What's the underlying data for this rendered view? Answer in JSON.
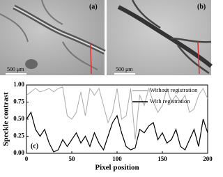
{
  "panels": [
    {
      "label": "(a)",
      "scale_bar": "500 μm"
    },
    {
      "label": "(b)",
      "scale_bar": "500 μm"
    }
  ],
  "chart_data": {
    "type": "line",
    "annotation": "(c)",
    "xlabel": "Pixel position",
    "ylabel": "Speckle contrast",
    "x": [
      0,
      5,
      10,
      15,
      20,
      25,
      30,
      35,
      40,
      45,
      50,
      55,
      60,
      65,
      70,
      75,
      80,
      85,
      90,
      95,
      100,
      105,
      110,
      115,
      120,
      125,
      130,
      135,
      140,
      145,
      150,
      155,
      160,
      165,
      170,
      175,
      180,
      185,
      190,
      195,
      200
    ],
    "series": [
      {
        "name": "Without registration",
        "color": "#aaaaaa",
        "values": [
          0.85,
          0.9,
          0.95,
          0.9,
          0.92,
          0.95,
          0.9,
          0.95,
          0.97,
          0.55,
          0.5,
          0.6,
          0.9,
          0.55,
          0.95,
          0.85,
          0.95,
          0.7,
          0.45,
          0.6,
          0.95,
          0.5,
          0.55,
          0.95,
          0.2,
          0.85,
          0.7,
          0.95,
          0.75,
          0.6,
          0.7,
          0.95,
          0.75,
          0.85,
          0.75,
          0.85,
          0.6,
          0.65,
          0.85,
          0.95,
          0.8
        ]
      },
      {
        "name": "With registration",
        "color": "#000000",
        "values": [
          0.5,
          0.6,
          0.35,
          0.25,
          0.35,
          0.15,
          0.02,
          0.05,
          0.2,
          0.1,
          0.2,
          0.3,
          0.15,
          0.25,
          0.1,
          0.3,
          0.15,
          0.05,
          0.25,
          0.45,
          0.55,
          0.3,
          0.1,
          0.05,
          0.08,
          0.35,
          0.3,
          0.4,
          0.45,
          0.2,
          0.3,
          0.15,
          0.2,
          0.35,
          0.1,
          0.05,
          0.2,
          0.35,
          0.1,
          0.5,
          0.3
        ]
      }
    ],
    "xlim": [
      0,
      200
    ],
    "xticks": [
      0,
      50,
      100,
      150,
      200
    ],
    "ylim": [
      0,
      1
    ],
    "yticks": [
      {
        "value": 0,
        "label": "0.00"
      },
      {
        "value": 0.25,
        "label": "0.25"
      },
      {
        "value": 0.5,
        "label": "0.50"
      },
      {
        "value": 0.75,
        "label": "0.75"
      },
      {
        "value": 1,
        "label": "1.00"
      }
    ],
    "legend": "upper right"
  }
}
